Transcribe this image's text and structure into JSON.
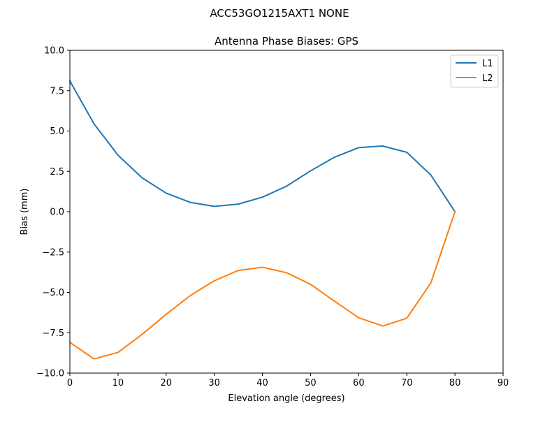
{
  "chart_data": {
    "type": "line",
    "suptitle": "ACC53GO1215AXT1 NONE",
    "title": "Antenna Phase Biases: GPS",
    "xlabel": "Elevation angle (degrees)",
    "ylabel": "Bias (mm)",
    "xlim": [
      0,
      90
    ],
    "ylim": [
      -10,
      10
    ],
    "xticks": [
      0,
      10,
      20,
      30,
      40,
      50,
      60,
      70,
      80,
      90
    ],
    "xtick_labels": [
      "0",
      "10",
      "20",
      "30",
      "40",
      "50",
      "60",
      "70",
      "80",
      "90"
    ],
    "yticks": [
      -10,
      -7.5,
      -5,
      -2.5,
      0,
      2.5,
      5,
      7.5,
      10
    ],
    "ytick_labels": [
      "−10.0",
      "−7.5",
      "−5.0",
      "−2.5",
      "0.0",
      "2.5",
      "5.0",
      "7.5",
      "10.0"
    ],
    "grid": false,
    "legend_position": "top-right",
    "x": [
      0,
      5,
      10,
      15,
      20,
      25,
      30,
      35,
      40,
      45,
      50,
      55,
      60,
      65,
      70,
      75,
      80
    ],
    "series": [
      {
        "name": "L1",
        "color": "#1f77b4",
        "values": [
          8.1,
          5.45,
          3.5,
          2.1,
          1.15,
          0.58,
          0.33,
          0.47,
          0.9,
          1.58,
          2.53,
          3.38,
          3.97,
          4.07,
          3.68,
          2.27,
          0.0
        ]
      },
      {
        "name": "L2",
        "color": "#ff7f0e",
        "values": [
          -8.1,
          -9.12,
          -8.72,
          -7.6,
          -6.36,
          -5.2,
          -4.28,
          -3.64,
          -3.44,
          -3.78,
          -4.5,
          -5.55,
          -6.57,
          -7.08,
          -6.6,
          -4.4,
          0.0
        ]
      }
    ]
  }
}
